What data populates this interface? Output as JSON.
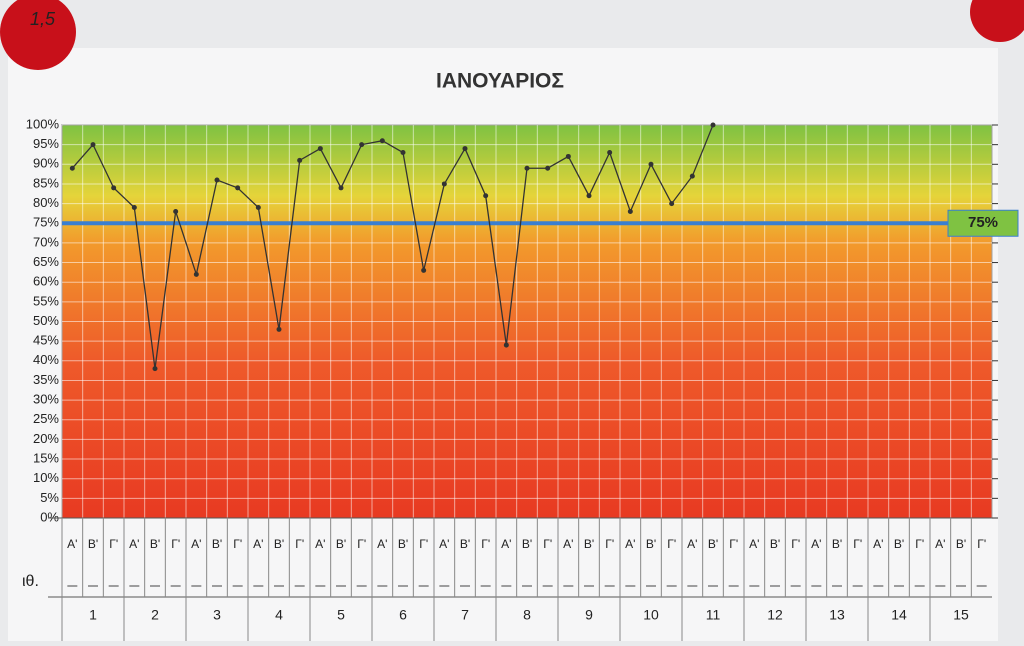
{
  "chart_data": {
    "type": "line",
    "title": "ΙΑΝΟΥΑΡΙΟΣ",
    "sticker_label": "1,5",
    "row_label": "ιθ.",
    "categories": [
      "Α'",
      "Β'",
      "Γ'",
      "Α'",
      "Β'",
      "Γ'",
      "Α'",
      "Β'",
      "Γ'",
      "Α'",
      "Β'",
      "Γ'",
      "Α'",
      "Β'",
      "Γ'",
      "Α'",
      "Β'",
      "Γ'",
      "Α'",
      "Β'",
      "Γ'",
      "Α'",
      "Β'",
      "Γ'",
      "Α'",
      "Β'",
      "Γ'",
      "Α'",
      "Β'",
      "Γ'",
      "Α'",
      "Β'",
      "Γ'",
      "Α'",
      "Β'",
      "Γ'",
      "Α'",
      "Β'",
      "Γ'",
      "Α'",
      "Β'",
      "Γ'",
      "Α'",
      "Β'",
      "Γ'"
    ],
    "groups": [
      "1",
      "2",
      "3",
      "4",
      "5",
      "6",
      "7",
      "8",
      "9",
      "10",
      "11",
      "12",
      "13",
      "14",
      "15"
    ],
    "series": [
      {
        "color": "#333333",
        "values": [
          89,
          95,
          84,
          79,
          38,
          78,
          62,
          86,
          84,
          79,
          48,
          91,
          94,
          84,
          95,
          96,
          93,
          63,
          85,
          94,
          82,
          44,
          89,
          89,
          92,
          82,
          93,
          78,
          90,
          80,
          87,
          100,
          null,
          null,
          null,
          null,
          null,
          null,
          null,
          null,
          null,
          null,
          null,
          null,
          null
        ]
      }
    ],
    "target": 75,
    "target_label": "75%",
    "target_color": "#3a7fd0",
    "ylim": [
      0,
      100
    ],
    "yticks": [
      {
        "value": 0,
        "label": "0%"
      },
      {
        "value": 5,
        "label": "5%"
      },
      {
        "value": 10,
        "label": "10%"
      },
      {
        "value": 15,
        "label": "15%"
      },
      {
        "value": 20,
        "label": "20%"
      },
      {
        "value": 25,
        "label": "25%"
      },
      {
        "value": 30,
        "label": "30%"
      },
      {
        "value": 35,
        "label": "35%"
      },
      {
        "value": 40,
        "label": "40%"
      },
      {
        "value": 45,
        "label": "45%"
      },
      {
        "value": 50,
        "label": "50%"
      },
      {
        "value": 55,
        "label": "55%"
      },
      {
        "value": 60,
        "label": "60%"
      },
      {
        "value": 65,
        "label": "65%"
      },
      {
        "value": 70,
        "label": "70%"
      },
      {
        "value": 75,
        "label": "75%"
      },
      {
        "value": 80,
        "label": "80%"
      },
      {
        "value": 85,
        "label": "85%"
      },
      {
        "value": 90,
        "label": "90%"
      },
      {
        "value": 95,
        "label": "95%"
      },
      {
        "value": 100,
        "label": "100%"
      }
    ],
    "grid": true
  }
}
